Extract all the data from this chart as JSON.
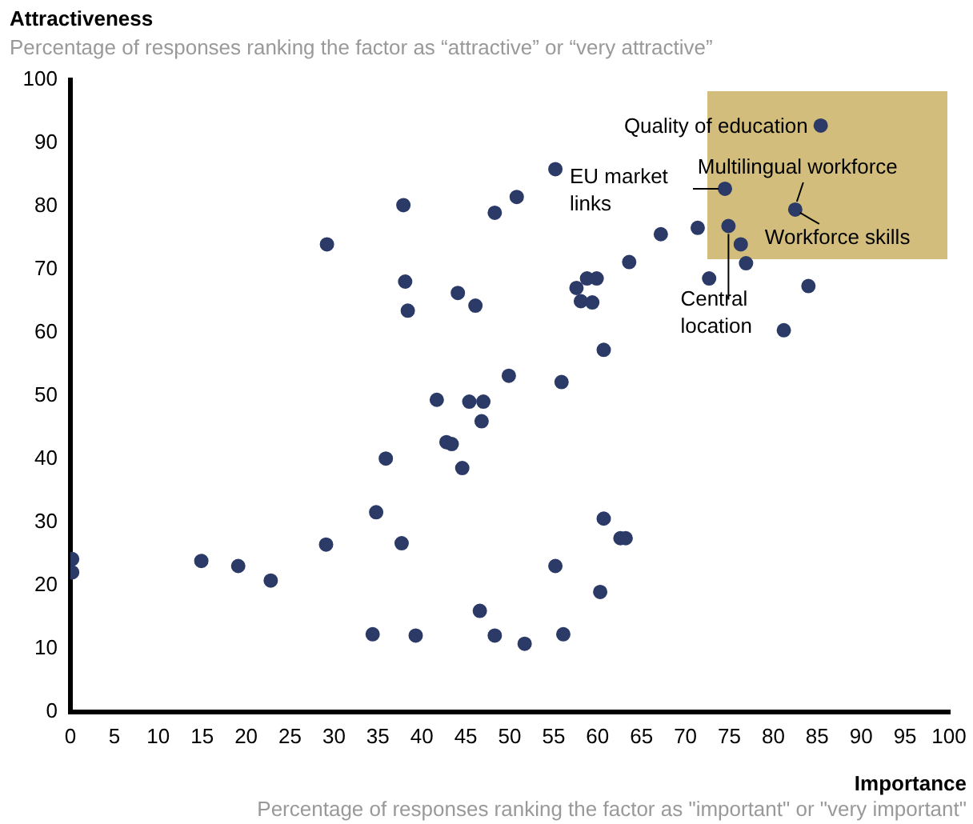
{
  "chart_data": {
    "type": "scatter",
    "xlabel": "Importance",
    "ylabel": "Attractiveness",
    "annotations": [
      "Percentage of responses ranking the factor as “attractive” or “very attractive”",
      "Percentage of responses ranking the factor as \"important\" or \"very important\"",
      {
        "text": "Quality of education",
        "x": 85.4,
        "y": 92.8
      },
      {
        "text": "EU market links",
        "x": 74.5,
        "y": 82.8
      },
      {
        "text": "Multilingual workforce",
        "x": 82.5,
        "y": 79.5
      },
      {
        "text": "Workforce skills",
        "x": 82.5,
        "y": 79.5
      },
      {
        "text": "Central location",
        "x": 74.9,
        "y": 76.9
      }
    ],
    "series": [
      {
        "color": "#2b3a67",
        "x": [
          0.2,
          0.2,
          14.9,
          19.1,
          22.8,
          29.1,
          29.2,
          34.4,
          34.8,
          35.9,
          37.7,
          37.9,
          38.1,
          38.4,
          39.3,
          41.7,
          42.8,
          43.4,
          44.1,
          44.6,
          45.4,
          46.1,
          46.6,
          46.8,
          47.0,
          48.3,
          48.3,
          49.9,
          50.8,
          51.7,
          55.2,
          55.2,
          55.9,
          56.1,
          57.6,
          58.1,
          58.8,
          59.4,
          59.9,
          60.3,
          60.7,
          60.7,
          62.6,
          63.2,
          63.6,
          67.2,
          71.4,
          72.7,
          74.5,
          74.9,
          76.3,
          76.9,
          81.2,
          82.5,
          84.0,
          85.4
        ],
        "values": [
          24.2,
          22.1,
          23.9,
          23.1,
          20.8,
          26.5,
          74.0,
          12.3,
          31.6,
          40.1,
          26.7,
          80.2,
          68.1,
          63.5,
          12.1,
          49.4,
          42.7,
          42.4,
          66.3,
          38.6,
          49.1,
          64.3,
          16.0,
          46.0,
          49.1,
          79.0,
          12.1,
          53.2,
          81.5,
          10.8,
          85.9,
          23.1,
          52.2,
          12.3,
          67.1,
          65.0,
          68.6,
          64.8,
          68.6,
          19.0,
          57.3,
          30.6,
          27.5,
          27.5,
          71.2,
          75.6,
          76.6,
          68.6,
          82.8,
          76.9,
          74.0,
          71.0,
          60.4,
          79.5,
          67.4,
          92.8
        ]
      }
    ],
    "xlim": [
      0,
      100
    ],
    "xticks": [
      0,
      5,
      10,
      15,
      20,
      25,
      30,
      35,
      40,
      45,
      50,
      55,
      60,
      65,
      70,
      75,
      80,
      85,
      90,
      95,
      100
    ],
    "ylim": [
      0,
      100
    ],
    "yticks": [
      0,
      10,
      20,
      30,
      40,
      50,
      60,
      70,
      80,
      90,
      100
    ],
    "grid": false,
    "legend": false,
    "marker": "circle"
  }
}
